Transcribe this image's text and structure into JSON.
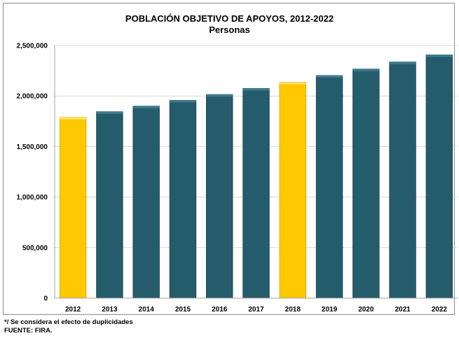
{
  "chart_data": {
    "type": "bar",
    "title": "POBLACIÓN OBJETIVO DE APOYOS, 2012-2022",
    "subtitle": "Personas",
    "categories": [
      "2012",
      "2013",
      "2014",
      "2015",
      "2016",
      "2017",
      "2018",
      "2019",
      "2020",
      "2021",
      "2022"
    ],
    "values": [
      1790000,
      1845000,
      1900000,
      1957000,
      2015000,
      2075000,
      2137000,
      2203000,
      2267000,
      2337000,
      2407000
    ],
    "highlighted": [
      "2012",
      "2018"
    ],
    "colors": {
      "default": "#245c6c",
      "highlight": "#ffc800"
    },
    "ylim": [
      0,
      2500000
    ],
    "yticks": [
      0,
      500000,
      1000000,
      1500000,
      2000000,
      2500000
    ],
    "ytick_labels": [
      "0",
      "500,000",
      "1,000,000",
      "1,500,000",
      "2,000,000",
      "2,500,000"
    ],
    "grid": true,
    "legend": "none"
  },
  "notes": {
    "line1": "*/ Se considera el efecto de duplicidades",
    "line2": "FUENTE: FIRA."
  }
}
